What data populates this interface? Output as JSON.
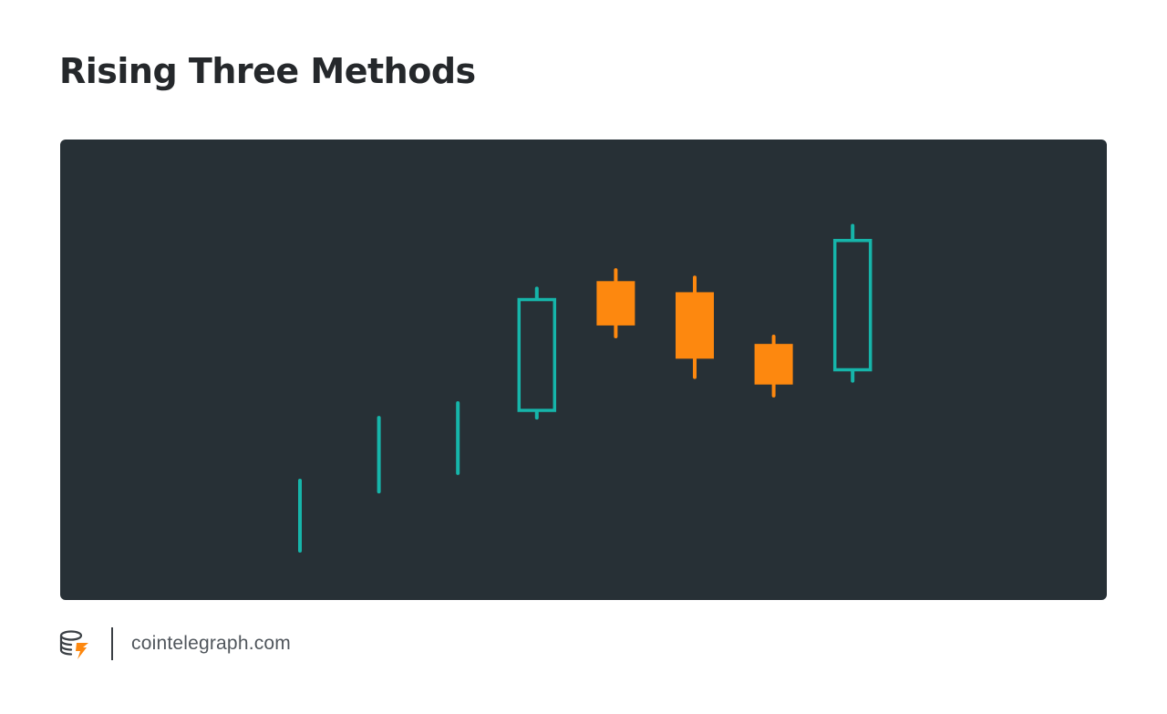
{
  "page": {
    "title": "Rising Three Methods"
  },
  "footer": {
    "site": "cointelegraph.com",
    "logo_icon": "cointelegraph-coin-logo-icon"
  },
  "colors": {
    "panel_background": "#273036",
    "bullish": "#16b5aa",
    "bearish": "#fd880f",
    "title_text": "#25282b",
    "footer_text": "#50565c"
  },
  "chart_data": {
    "type": "candlestick",
    "title": "Rising Three Methods",
    "xlabel": "",
    "ylabel": "",
    "axes_visible": false,
    "grid": false,
    "ylim": [
      0,
      100
    ],
    "candles": [
      {
        "direction": "up",
        "body": false,
        "high": 20,
        "low": 1
      },
      {
        "direction": "up",
        "body": false,
        "high": 37,
        "low": 17
      },
      {
        "direction": "up",
        "body": false,
        "high": 41,
        "low": 22
      },
      {
        "direction": "up",
        "body": true,
        "filled": false,
        "open": 39,
        "close": 69,
        "high": 72,
        "low": 37
      },
      {
        "direction": "down",
        "body": true,
        "filled": true,
        "open": 74,
        "close": 62,
        "high": 77,
        "low": 59
      },
      {
        "direction": "down",
        "body": true,
        "filled": true,
        "open": 71,
        "close": 53,
        "high": 75,
        "low": 48
      },
      {
        "direction": "down",
        "body": true,
        "filled": true,
        "open": 57,
        "close": 46,
        "high": 59,
        "low": 43
      },
      {
        "direction": "up",
        "body": true,
        "filled": false,
        "open": 50,
        "close": 85,
        "high": 89,
        "low": 47
      }
    ]
  }
}
